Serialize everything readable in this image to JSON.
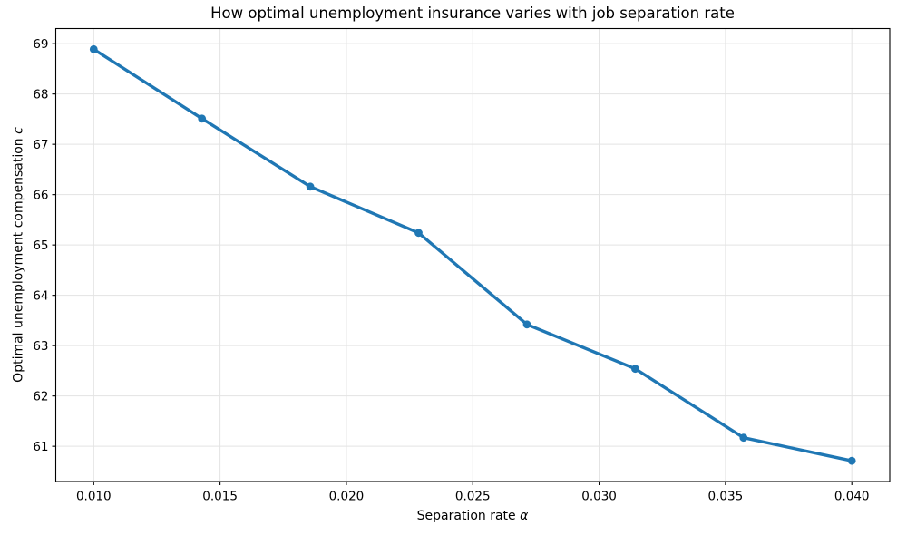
{
  "figure": {
    "title": "How optimal unemployment insurance varies with job separation rate"
  },
  "chart_data": {
    "type": "line",
    "title": "How optimal unemployment insurance varies with job separation rate",
    "xlabel": "Separation rate α",
    "ylabel": "Optimal unemployment compensation c",
    "xlabel_parts": {
      "prefix": "Separation rate ",
      "symbol": "α"
    },
    "ylabel_parts": {
      "prefix": "Optimal unemployment compensation ",
      "symbol": "c"
    },
    "series": [
      {
        "name": "optimal-unemployment-compensation",
        "color": "#1f77b4",
        "marker": "circle",
        "x": [
          0.01,
          0.014286,
          0.018571,
          0.022857,
          0.027143,
          0.031429,
          0.035714,
          0.04
        ],
        "y": [
          68.89,
          67.51,
          66.16,
          65.24,
          63.42,
          62.54,
          61.17,
          60.71
        ]
      }
    ],
    "x_ticks": [
      0.01,
      0.015,
      0.02,
      0.025,
      0.03,
      0.035,
      0.04
    ],
    "x_tick_labels": [
      "0.010",
      "0.015",
      "0.020",
      "0.025",
      "0.030",
      "0.035",
      "0.040"
    ],
    "y_ticks": [
      61,
      62,
      63,
      64,
      65,
      66,
      67,
      68,
      69
    ],
    "y_tick_labels": [
      "61",
      "62",
      "63",
      "64",
      "65",
      "66",
      "67",
      "68",
      "69"
    ],
    "xlim": [
      0.0085,
      0.0415
    ],
    "ylim": [
      60.3,
      69.3
    ],
    "grid": true,
    "legend_position": "none",
    "grid_color": "#e3e3e3",
    "axis_color": "#000000",
    "background": "#ffffff"
  }
}
